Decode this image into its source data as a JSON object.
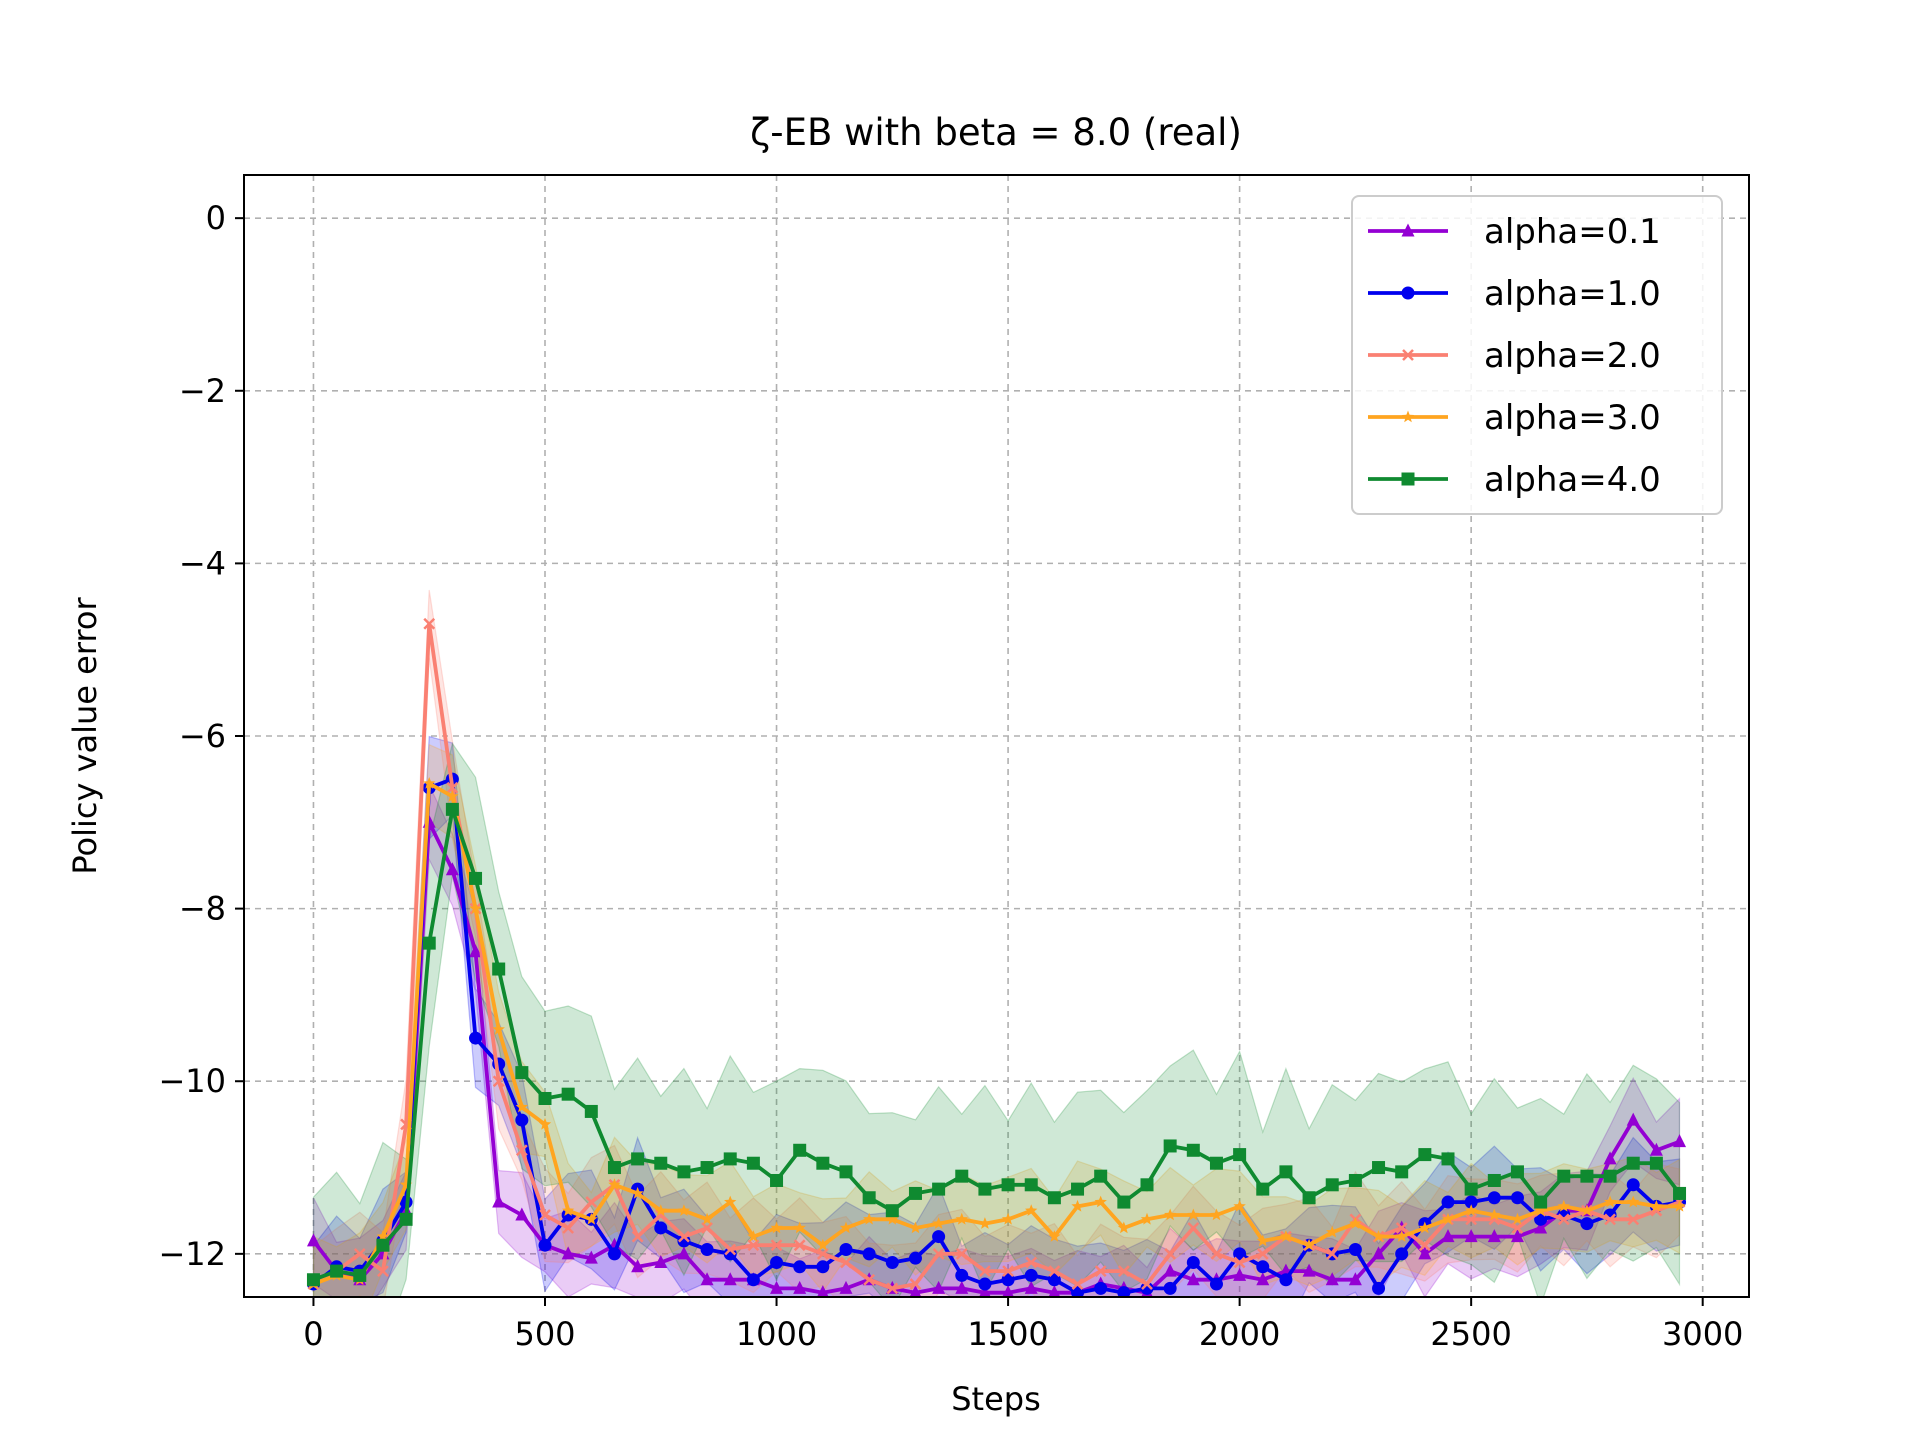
{
  "chart_data": {
    "type": "line",
    "title": "ζ-EB with beta = 8.0 (real)",
    "xlabel": "Steps",
    "ylabel": "Policy value error",
    "xlim": [
      -150,
      3100
    ],
    "ylim": [
      -12.5,
      0.5
    ],
    "xticks": [
      0,
      500,
      1000,
      1500,
      2000,
      2500,
      3000
    ],
    "yticks": [
      0,
      -2,
      -4,
      -6,
      -8,
      -10,
      -12
    ],
    "xtick_labels": [
      "0",
      "500",
      "1000",
      "1500",
      "2000",
      "2500",
      "3000"
    ],
    "ytick_labels": [
      "0",
      "−2",
      "−4",
      "−6",
      "−8",
      "−10",
      "−12"
    ],
    "grid": true,
    "legend_position": "top-right",
    "x": [
      0,
      50,
      100,
      150,
      200,
      250,
      300,
      350,
      400,
      450,
      500,
      550,
      600,
      650,
      700,
      750,
      800,
      850,
      900,
      950,
      1000,
      1050,
      1100,
      1150,
      1200,
      1250,
      1300,
      1350,
      1400,
      1450,
      1500,
      1550,
      1600,
      1650,
      1700,
      1750,
      1800,
      1850,
      1900,
      1950,
      2000,
      2050,
      2100,
      2150,
      2200,
      2250,
      2300,
      2350,
      2400,
      2450,
      2500,
      2550,
      2600,
      2650,
      2700,
      2750,
      2800,
      2850,
      2900,
      2950
    ],
    "series": [
      {
        "name": "alpha=0.1",
        "color": "#9400D3",
        "marker": "triangle",
        "band": 0.5,
        "values": [
          -11.85,
          -12.2,
          -12.3,
          -12.0,
          -11.5,
          -7.0,
          -7.55,
          -8.5,
          -11.4,
          -11.55,
          -11.9,
          -12.0,
          -12.05,
          -11.9,
          -12.15,
          -12.1,
          -12.0,
          -12.3,
          -12.3,
          -12.3,
          -12.4,
          -12.4,
          -12.45,
          -12.4,
          -12.3,
          -12.4,
          -12.45,
          -12.4,
          -12.4,
          -12.45,
          -12.45,
          -12.4,
          -12.45,
          -12.45,
          -12.35,
          -12.4,
          -12.45,
          -12.2,
          -12.3,
          -12.3,
          -12.25,
          -12.3,
          -12.2,
          -12.2,
          -12.3,
          -12.3,
          -12.0,
          -11.7,
          -12.0,
          -11.8,
          -11.8,
          -11.8,
          -11.8,
          -11.7,
          -11.5,
          -11.5,
          -10.9,
          -10.45,
          -10.8,
          -10.7
        ]
      },
      {
        "name": "alpha=1.0",
        "color": "#0000EE",
        "marker": "circle",
        "band": 0.6,
        "values": [
          -12.35,
          -12.15,
          -12.2,
          -11.85,
          -11.4,
          -6.6,
          -6.5,
          -9.5,
          -9.8,
          -10.45,
          -11.9,
          -11.55,
          -11.6,
          -12.0,
          -11.25,
          -11.7,
          -11.85,
          -11.95,
          -12.0,
          -12.3,
          -12.1,
          -12.15,
          -12.15,
          -11.95,
          -12.0,
          -12.1,
          -12.05,
          -11.8,
          -12.25,
          -12.35,
          -12.3,
          -12.25,
          -12.3,
          -12.45,
          -12.4,
          -12.45,
          -12.4,
          -12.4,
          -12.1,
          -12.35,
          -12.0,
          -12.15,
          -12.3,
          -11.9,
          -12.0,
          -11.95,
          -12.4,
          -12.0,
          -11.65,
          -11.4,
          -11.4,
          -11.35,
          -11.35,
          -11.6,
          -11.55,
          -11.65,
          -11.55,
          -11.2,
          -11.45,
          -11.4
        ]
      },
      {
        "name": "alpha=2.0",
        "color": "#FA8072",
        "marker": "cross",
        "band": 0.55,
        "values": [
          -12.35,
          -12.2,
          -12.0,
          -12.2,
          -10.5,
          -4.7,
          -6.6,
          -8.0,
          -10.0,
          -10.8,
          -11.55,
          -11.7,
          -11.4,
          -11.2,
          -11.8,
          -11.55,
          -11.8,
          -11.7,
          -11.95,
          -11.9,
          -11.9,
          -11.9,
          -12.0,
          -12.1,
          -12.3,
          -12.4,
          -12.35,
          -12.0,
          -12.0,
          -12.2,
          -12.2,
          -12.1,
          -12.2,
          -12.35,
          -12.2,
          -12.2,
          -12.35,
          -12.0,
          -11.7,
          -12.0,
          -12.1,
          -12.0,
          -11.8,
          -11.9,
          -12.0,
          -11.6,
          -11.8,
          -11.7,
          -11.9,
          -11.6,
          -11.6,
          -11.6,
          -11.7,
          -11.5,
          -11.6,
          -11.5,
          -11.6,
          -11.6,
          -11.5,
          -11.4
        ]
      },
      {
        "name": "alpha=3.0",
        "color": "#FFA520",
        "marker": "star",
        "band": 0.55,
        "values": [
          -12.35,
          -12.25,
          -12.3,
          -11.8,
          -11.2,
          -6.55,
          -6.7,
          -8.0,
          -9.4,
          -10.3,
          -10.5,
          -11.5,
          -11.6,
          -11.2,
          -11.3,
          -11.5,
          -11.5,
          -11.6,
          -11.4,
          -11.8,
          -11.7,
          -11.7,
          -11.9,
          -11.7,
          -11.6,
          -11.6,
          -11.7,
          -11.65,
          -11.6,
          -11.65,
          -11.6,
          -11.5,
          -11.8,
          -11.45,
          -11.4,
          -11.7,
          -11.6,
          -11.55,
          -11.55,
          -11.55,
          -11.45,
          -11.85,
          -11.8,
          -11.9,
          -11.75,
          -11.65,
          -11.8,
          -11.8,
          -11.7,
          -11.6,
          -11.5,
          -11.55,
          -11.6,
          -11.5,
          -11.45,
          -11.5,
          -11.4,
          -11.4,
          -11.45,
          -11.45
        ]
      },
      {
        "name": "alpha=4.0",
        "color": "#0F8A30",
        "marker": "square",
        "band": 1.2,
        "values": [
          -12.3,
          -12.2,
          -12.25,
          -11.9,
          -11.6,
          -8.4,
          -6.85,
          -7.65,
          -8.7,
          -9.9,
          -10.2,
          -10.15,
          -10.35,
          -11.0,
          -10.9,
          -10.95,
          -11.05,
          -11.0,
          -10.9,
          -10.95,
          -11.15,
          -10.8,
          -10.95,
          -11.05,
          -11.35,
          -11.5,
          -11.3,
          -11.25,
          -11.1,
          -11.25,
          -11.2,
          -11.2,
          -11.35,
          -11.25,
          -11.1,
          -11.4,
          -11.2,
          -10.75,
          -10.8,
          -10.95,
          -10.85,
          -11.25,
          -11.05,
          -11.35,
          -11.2,
          -11.15,
          -11.0,
          -11.05,
          -10.85,
          -10.9,
          -11.25,
          -11.15,
          -11.05,
          -11.4,
          -11.1,
          -11.1,
          -11.1,
          -10.95,
          -10.95,
          -11.3
        ]
      }
    ]
  }
}
